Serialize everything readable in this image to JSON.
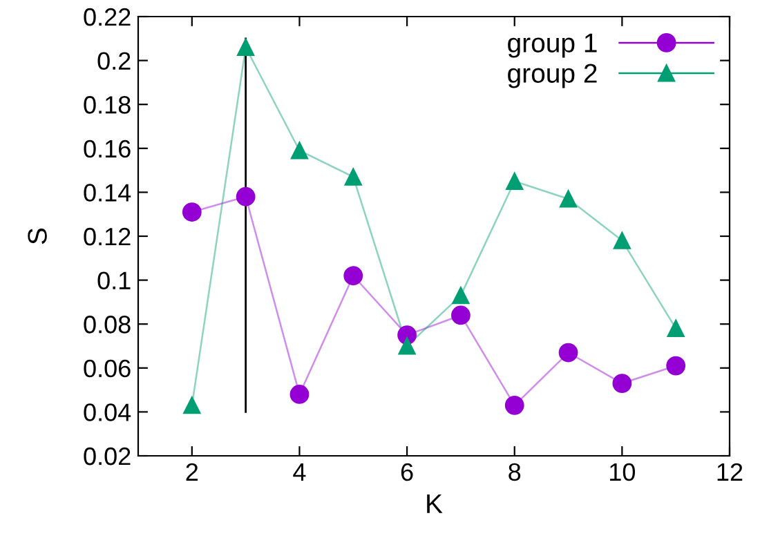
{
  "chart_data": {
    "type": "line",
    "xlabel": "K",
    "ylabel": "S",
    "x": [
      2,
      3,
      4,
      5,
      6,
      7,
      8,
      9,
      10,
      11
    ],
    "xlim": [
      1,
      12
    ],
    "xticks": [
      2,
      4,
      6,
      8,
      10,
      12
    ],
    "ylim": [
      0.02,
      0.22
    ],
    "yticks": [
      0.02,
      0.04,
      0.06,
      0.08,
      0.1,
      0.12,
      0.14,
      0.16,
      0.18,
      0.2,
      0.22
    ],
    "grid": false,
    "legend": "top right",
    "series": [
      {
        "name": "group 1",
        "color": "#9400d3",
        "marker": "circle",
        "values": [
          0.131,
          0.138,
          0.048,
          0.102,
          0.075,
          0.084,
          0.043,
          0.067,
          0.053,
          0.061
        ]
      },
      {
        "name": "group 2",
        "color": "#009e73",
        "marker": "triangle",
        "values": [
          0.043,
          0.206,
          0.159,
          0.147,
          0.07,
          0.093,
          0.145,
          0.137,
          0.118,
          0.078
        ]
      },
      {
        "type": "line",
        "color": "#000000",
        "marker": "none",
        "x": [
          3,
          3
        ],
        "values": [
          0.04,
          0.21
        ]
      }
    ]
  }
}
